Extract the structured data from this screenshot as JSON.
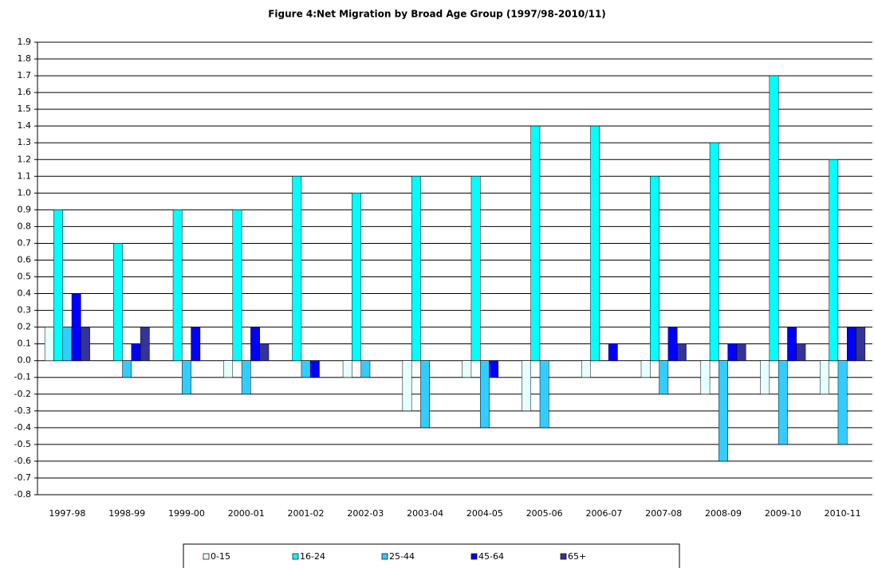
{
  "chart_data": {
    "type": "bar",
    "title": "Figure 4:Net Migration by Broad Age Group (1997/98-2010/11)",
    "categories": [
      "1997-98",
      "1998-99",
      "1999-00",
      "2000-01",
      "2001-02",
      "2002-03",
      "2003-04",
      "2004-05",
      "2005-06",
      "2006-07",
      "2007-08",
      "2008-09",
      "2009-10",
      "2010-11"
    ],
    "series": [
      {
        "name": "0-15",
        "color": "#e6ffff",
        "values": [
          0.2,
          0,
          0,
          -0.1,
          0,
          -0.1,
          -0.3,
          -0.1,
          -0.3,
          -0.1,
          -0.1,
          -0.2,
          -0.2,
          -0.2
        ]
      },
      {
        "name": "16-24",
        "color": "#00ffff",
        "values": [
          0.9,
          0.7,
          0.9,
          0.9,
          1.1,
          1.0,
          1.1,
          1.1,
          1.4,
          1.4,
          1.1,
          1.3,
          1.7,
          1.2
        ]
      },
      {
        "name": "25-44",
        "color": "#33ccff",
        "values": [
          0.2,
          -0.1,
          -0.2,
          -0.2,
          -0.1,
          -0.1,
          -0.4,
          -0.4,
          -0.4,
          0,
          -0.2,
          -0.6,
          -0.5,
          -0.5
        ]
      },
      {
        "name": "45-64",
        "color": "#0000ff",
        "values": [
          0.4,
          0.1,
          0.2,
          0.2,
          -0.1,
          0,
          0,
          -0.1,
          0,
          0.1,
          0.2,
          0.1,
          0.2,
          0.2
        ]
      },
      {
        "name": "65+",
        "color": "#333399",
        "values": [
          0.2,
          0.2,
          0,
          0.1,
          0,
          0,
          0,
          0,
          0,
          0,
          0.1,
          0.1,
          0.1,
          0.2
        ]
      }
    ],
    "ylim": [
      -0.8,
      1.9
    ],
    "yticks": [
      -0.8,
      -0.7,
      -0.6,
      -0.5,
      -0.4,
      -0.3,
      -0.2,
      -0.1,
      {
        "value": 0,
        "label": "0.0"
      },
      0.1,
      0.2,
      0.3,
      0.4,
      0.5,
      0.6,
      0.7,
      0.8,
      0.9,
      {
        "value": 1,
        "label": "1.0"
      },
      1.1,
      1.2,
      1.3,
      1.4,
      1.5,
      1.6,
      1.7,
      1.8,
      1.9
    ],
    "grid": true,
    "legend": "bottom"
  }
}
